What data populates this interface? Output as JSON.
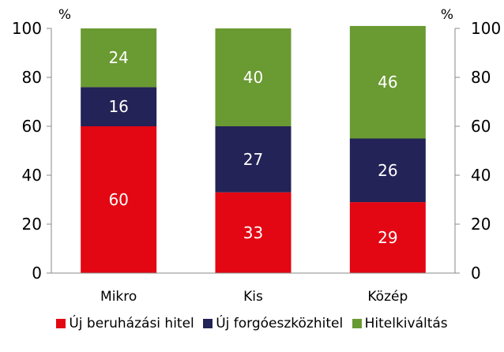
{
  "chart_data": {
    "type": "bar",
    "stacked": true,
    "categories": [
      "Mikro",
      "Kis",
      "Közép"
    ],
    "series": [
      {
        "name": "Új beruházási hitel",
        "color": "#e30613",
        "values": [
          60,
          33,
          29
        ]
      },
      {
        "name": "Új forgóeszközhitel",
        "color": "#232357",
        "values": [
          16,
          27,
          26
        ]
      },
      {
        "name": "Hitelkiváltás",
        "color": "#6a9a32",
        "values": [
          24,
          40,
          46
        ]
      }
    ],
    "ylim": [
      0,
      100
    ],
    "yticks": [
      0,
      20,
      40,
      60,
      80,
      100
    ],
    "y_unit_left": "%",
    "y_unit_right": "%",
    "secondary_axis": true,
    "grid": false,
    "legend_position": "bottom"
  }
}
